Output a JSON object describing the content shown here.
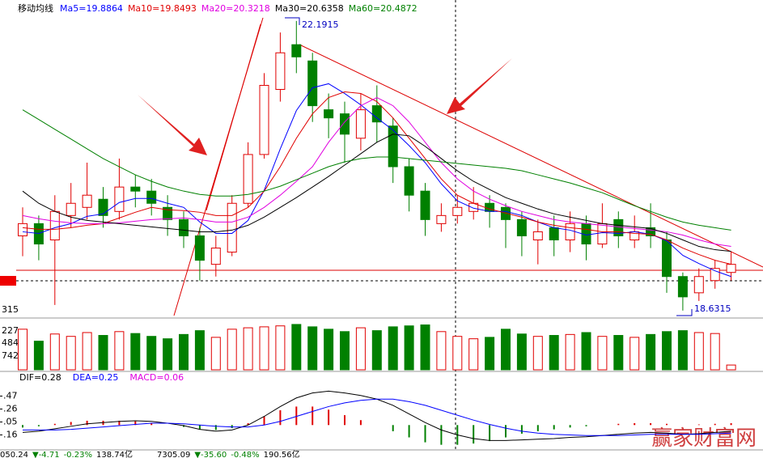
{
  "chart_data": {
    "type": "candlestick",
    "legend_title": "移动均线",
    "ylim": [
      18.55,
      22.3
    ],
    "price_axis_labels": [
      "315"
    ],
    "annotations": [
      "22.1915",
      "18.6315"
    ],
    "open": [
      19.55,
      19.7,
      19.5,
      19.8,
      19.9,
      20.0,
      19.85,
      20.15,
      20.1,
      19.9,
      19.75,
      19.55,
      19.2,
      19.35,
      19.95,
      20.55,
      21.35,
      21.9,
      21.7,
      21.1,
      21.05,
      20.75,
      21.15,
      20.9,
      20.4,
      20.1,
      19.7,
      19.8,
      19.85,
      19.95,
      19.9,
      19.75,
      19.5,
      19.65,
      19.5,
      19.7,
      19.45,
      19.75,
      19.5,
      19.65,
      19.5,
      19.05,
      18.85,
      19.0,
      19.1
    ],
    "high": [
      19.9,
      19.8,
      20.05,
      20.2,
      20.45,
      20.15,
      20.5,
      20.3,
      20.25,
      20.05,
      19.85,
      19.65,
      19.55,
      20.05,
      20.7,
      21.55,
      22.05,
      22.1915,
      21.8,
      21.3,
      21.2,
      21.3,
      21.4,
      21.0,
      20.5,
      20.2,
      19.95,
      20.05,
      20.15,
      20.05,
      19.95,
      19.85,
      19.75,
      19.8,
      19.85,
      19.8,
      19.95,
      19.85,
      19.8,
      19.95,
      19.6,
      19.1,
      19.15,
      19.25,
      19.35
    ],
    "low": [
      19.3,
      19.25,
      18.7,
      19.65,
      19.75,
      19.65,
      19.75,
      19.9,
      19.8,
      19.55,
      19.4,
      19.0,
      19.05,
      19.3,
      19.9,
      20.5,
      21.2,
      21.55,
      20.95,
      20.75,
      20.45,
      20.6,
      20.7,
      20.2,
      19.85,
      19.55,
      19.6,
      19.7,
      19.75,
      19.65,
      19.4,
      19.3,
      19.2,
      19.3,
      19.35,
      19.25,
      19.4,
      19.4,
      19.4,
      19.4,
      18.85,
      18.6315,
      18.75,
      18.9,
      19.0
    ],
    "close": [
      19.7,
      19.45,
      19.85,
      19.95,
      20.05,
      19.8,
      20.15,
      20.1,
      19.95,
      19.75,
      19.55,
      19.25,
      19.4,
      19.95,
      20.55,
      21.4,
      21.8,
      21.75,
      21.15,
      21.0,
      20.8,
      21.1,
      20.95,
      20.4,
      20.05,
      19.75,
      19.8,
      19.9,
      19.95,
      19.85,
      19.75,
      19.55,
      19.6,
      19.5,
      19.7,
      19.45,
      19.7,
      19.55,
      19.6,
      19.55,
      19.05,
      18.8,
      19.05,
      19.15,
      19.2
    ],
    "series": [
      {
        "name": "Ma5=19.8864",
        "color": "#0000ff",
        "values": [
          19.6,
          19.58,
          19.65,
          19.7,
          19.79,
          19.82,
          19.96,
          20.01,
          20.01,
          19.95,
          19.9,
          19.72,
          19.58,
          19.58,
          19.74,
          20.11,
          20.62,
          21.09,
          21.37,
          21.42,
          21.3,
          21.16,
          21.0,
          20.85,
          20.66,
          20.45,
          20.19,
          19.98,
          19.89,
          19.85,
          19.85,
          19.8,
          19.72,
          19.65,
          19.62,
          19.56,
          19.59,
          19.58,
          19.6,
          19.57,
          19.49,
          19.31,
          19.21,
          19.12,
          19.05
        ]
      },
      {
        "name": "Ma10=19.8493",
        "color": "#e00000",
        "values": [
          19.65,
          19.63,
          19.63,
          19.65,
          19.68,
          19.7,
          19.77,
          19.84,
          19.9,
          19.87,
          19.86,
          19.84,
          19.8,
          19.8,
          19.9,
          20.1,
          20.4,
          20.75,
          21.05,
          21.25,
          21.32,
          21.3,
          21.2,
          21.0,
          20.75,
          20.5,
          20.25,
          20.05,
          19.95,
          19.88,
          19.83,
          19.78,
          19.72,
          19.68,
          19.65,
          19.63,
          19.6,
          19.6,
          19.58,
          19.57,
          19.5,
          19.4,
          19.32,
          19.25,
          19.2
        ]
      },
      {
        "name": "Ma20=20.3218",
        "color": "#e000e0",
        "values": [
          19.8,
          19.76,
          19.73,
          19.71,
          19.7,
          19.7,
          19.71,
          19.73,
          19.75,
          19.76,
          19.77,
          19.75,
          19.72,
          19.72,
          19.78,
          19.9,
          20.05,
          20.22,
          20.4,
          20.7,
          20.95,
          21.15,
          21.25,
          21.15,
          20.95,
          20.7,
          20.45,
          20.25,
          20.1,
          20.0,
          19.92,
          19.85,
          19.8,
          19.75,
          19.72,
          19.7,
          19.68,
          19.66,
          19.64,
          19.62,
          19.6,
          19.56,
          19.5,
          19.45,
          19.42
        ]
      },
      {
        "name": "Ma30=20.6358",
        "color": "#000000",
        "values": [
          20.1,
          19.95,
          19.85,
          19.78,
          19.74,
          19.72,
          19.7,
          19.68,
          19.66,
          19.64,
          19.62,
          19.6,
          19.6,
          19.62,
          19.68,
          19.78,
          19.9,
          20.02,
          20.15,
          20.28,
          20.42,
          20.56,
          20.7,
          20.8,
          20.78,
          20.65,
          20.5,
          20.35,
          20.22,
          20.12,
          20.02,
          19.95,
          19.88,
          19.82,
          19.78,
          19.74,
          19.7,
          19.68,
          19.66,
          19.64,
          19.58,
          19.5,
          19.42,
          19.38,
          19.36
        ]
      },
      {
        "name": "Ma60=20.4872",
        "color": "#008000",
        "values": [
          21.1,
          20.98,
          20.86,
          20.74,
          20.62,
          20.5,
          20.4,
          20.3,
          20.22,
          20.15,
          20.1,
          20.06,
          20.04,
          20.04,
          20.06,
          20.1,
          20.16,
          20.24,
          20.32,
          20.4,
          20.46,
          20.5,
          20.52,
          20.52,
          20.5,
          20.48,
          20.46,
          20.44,
          20.42,
          20.4,
          20.38,
          20.35,
          20.3,
          20.25,
          20.2,
          20.14,
          20.08,
          20.0,
          19.92,
          19.85,
          19.78,
          19.72,
          19.68,
          19.65,
          19.62
        ]
      }
    ],
    "volume": {
      "ylim": [
        0,
        100
      ],
      "axis_labels": [
        "227",
        "484",
        "742"
      ],
      "values": [
        85,
        60,
        75,
        70,
        78,
        72,
        80,
        76,
        70,
        65,
        74,
        82,
        68,
        85,
        88,
        90,
        92,
        95,
        90,
        85,
        80,
        88,
        82,
        90,
        92,
        94,
        80,
        70,
        65,
        68,
        85,
        75,
        70,
        72,
        74,
        78,
        70,
        72,
        68,
        74,
        80,
        82,
        78,
        76,
        10
      ]
    },
    "macd": {
      "ylim": [
        -0.39,
        0.66
      ],
      "yticks": [
        {
          "value": 0.47,
          "label": ".47"
        },
        {
          "value": 0.26,
          "label": ".26"
        },
        {
          "value": 0.05,
          "label": ".05"
        },
        {
          "value": -0.16,
          "label": ".16"
        }
      ],
      "series": [
        {
          "name": "DIF=0.28",
          "color": "#000000",
          "values": [
            -0.12,
            -0.1,
            -0.06,
            -0.02,
            0.02,
            0.04,
            0.06,
            0.07,
            0.06,
            0.03,
            -0.01,
            -0.07,
            -0.1,
            -0.08,
            0.0,
            0.14,
            0.3,
            0.44,
            0.52,
            0.55,
            0.52,
            0.48,
            0.42,
            0.32,
            0.18,
            0.04,
            -0.08,
            -0.16,
            -0.22,
            -0.25,
            -0.25,
            -0.24,
            -0.23,
            -0.22,
            -0.2,
            -0.19,
            -0.17,
            -0.15,
            -0.13,
            -0.12,
            -0.13,
            -0.15,
            -0.14,
            -0.12,
            -0.1
          ]
        },
        {
          "name": "DEA=0.25",
          "color": "#0000ff",
          "values": [
            -0.08,
            -0.08,
            -0.08,
            -0.07,
            -0.05,
            -0.03,
            -0.01,
            0.01,
            0.03,
            0.03,
            0.02,
            0.0,
            -0.02,
            -0.03,
            -0.03,
            0.0,
            0.06,
            0.14,
            0.22,
            0.3,
            0.36,
            0.4,
            0.42,
            0.42,
            0.38,
            0.32,
            0.24,
            0.16,
            0.08,
            0.01,
            -0.05,
            -0.1,
            -0.13,
            -0.15,
            -0.16,
            -0.17,
            -0.17,
            -0.17,
            -0.16,
            -0.15,
            -0.15,
            -0.15,
            -0.15,
            -0.14,
            -0.13
          ]
        }
      ],
      "histogram": {
        "name": "MACD=0.06",
        "color": "#e000e0",
        "values": [
          -0.04,
          -0.02,
          0.02,
          0.05,
          0.07,
          0.07,
          0.07,
          0.06,
          0.03,
          0,
          -0.03,
          -0.07,
          -0.08,
          -0.05,
          0.03,
          0.14,
          0.24,
          0.3,
          0.3,
          0.25,
          0.16,
          0.08,
          0,
          -0.1,
          -0.2,
          -0.28,
          -0.32,
          -0.32,
          -0.3,
          -0.26,
          -0.2,
          -0.14,
          -0.1,
          -0.07,
          -0.04,
          -0.02,
          0,
          0.02,
          0.03,
          0.03,
          0.02,
          0,
          0.01,
          0.02,
          0.03
        ]
      }
    },
    "status_bar": [
      "050.24",
      "▼-4.71",
      "-0.23%",
      "138.74亿",
      "7305.09",
      "▼-35.60",
      "-0.48%",
      "190.56亿"
    ],
    "watermark": "赢家财富网"
  }
}
